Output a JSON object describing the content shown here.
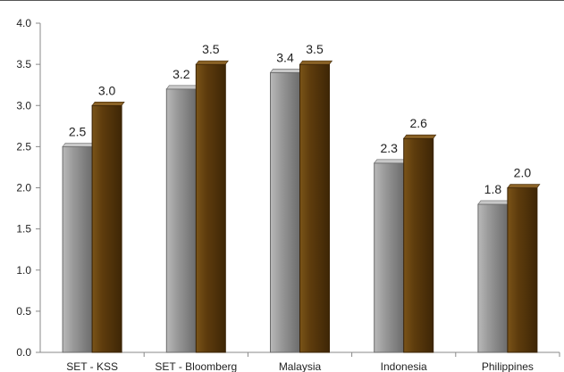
{
  "chart_data": {
    "type": "bar",
    "categories": [
      "SET - KSS",
      "SET - Bloomberg",
      "Malaysia",
      "Indonesia",
      "Philippines"
    ],
    "series": [
      {
        "values": [
          2.5,
          3.2,
          3.4,
          2.3,
          1.8
        ],
        "labels": [
          "2.5",
          "3.2",
          "3.4",
          "2.3",
          "1.8"
        ],
        "color": "#8a8a8a"
      },
      {
        "values": [
          3.0,
          3.5,
          3.5,
          2.6,
          2.0
        ],
        "labels": [
          "3.0",
          "3.5",
          "3.5",
          "2.6",
          "2.0"
        ],
        "color": "#5a3a0c"
      }
    ],
    "y_ticks": [
      "0.0",
      "0.5",
      "1.0",
      "1.5",
      "2.0",
      "2.5",
      "3.0",
      "3.5",
      "4.0"
    ],
    "ylim": [
      0,
      4
    ],
    "grid": false,
    "legend": "none",
    "title": "",
    "xlabel": "",
    "ylabel": ""
  }
}
